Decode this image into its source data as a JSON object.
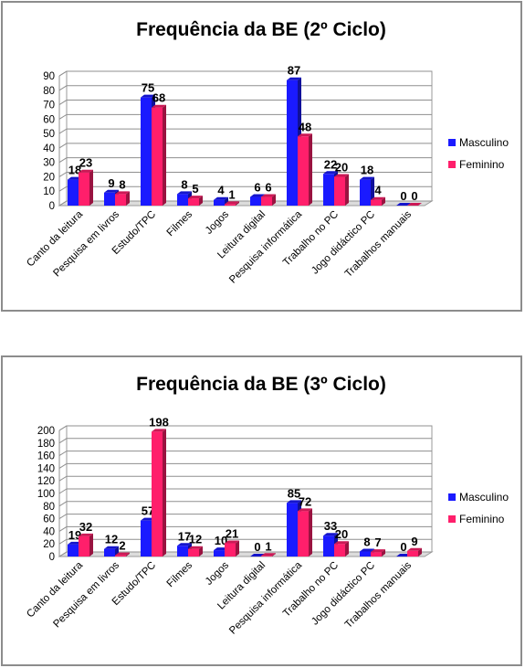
{
  "chart_data": [
    {
      "type": "bar",
      "title": "Frequência da BE (2º Ciclo)",
      "categories": [
        "Canto da leitura",
        "Pesquisa em livros",
        "Estudo/TPC",
        "Filmes",
        "Jogos",
        "Leitura digital",
        "Pesquisa informática",
        "Trabalho no PC",
        "Jogo didáctico PC",
        "Trabalhos manuais"
      ],
      "series": [
        {
          "name": "Masculino",
          "color": "#1a1aff",
          "values": [
            18,
            9,
            75,
            8,
            4,
            6,
            87,
            22,
            18,
            0
          ]
        },
        {
          "name": "Feminino",
          "color": "#ff1f6b",
          "values": [
            23,
            8,
            68,
            5,
            1,
            6,
            48,
            20,
            4,
            0
          ]
        }
      ],
      "ylim": [
        0,
        90
      ],
      "yticks": [
        "0",
        "10",
        "20",
        "30",
        "40",
        "50",
        "60",
        "70",
        "80",
        "90"
      ],
      "grid": true,
      "legend_position": "right"
    },
    {
      "type": "bar",
      "title": "Frequência da BE (3º Ciclo)",
      "categories": [
        "Canto da leitura",
        "Pesquisa em livros",
        "Estudo/TPC",
        "Filmes",
        "Jogos",
        "Leitura digital",
        "Pesquisa informática",
        "Trabalho no PC",
        "Jogo didáctico PC",
        "Trabalhos manuais"
      ],
      "series": [
        {
          "name": "Masculino",
          "color": "#1a1aff",
          "values": [
            19,
            12,
            57,
            17,
            10,
            0,
            85,
            33,
            8,
            0
          ]
        },
        {
          "name": "Feminino",
          "color": "#ff1f6b",
          "values": [
            32,
            2,
            198,
            12,
            21,
            1,
            72,
            20,
            7,
            9
          ]
        }
      ],
      "ylim": [
        0,
        200
      ],
      "yticks": [
        "0",
        "20",
        "40",
        "60",
        "80",
        "100",
        "120",
        "140",
        "160",
        "180",
        "200"
      ],
      "grid": true,
      "legend_position": "right"
    }
  ]
}
